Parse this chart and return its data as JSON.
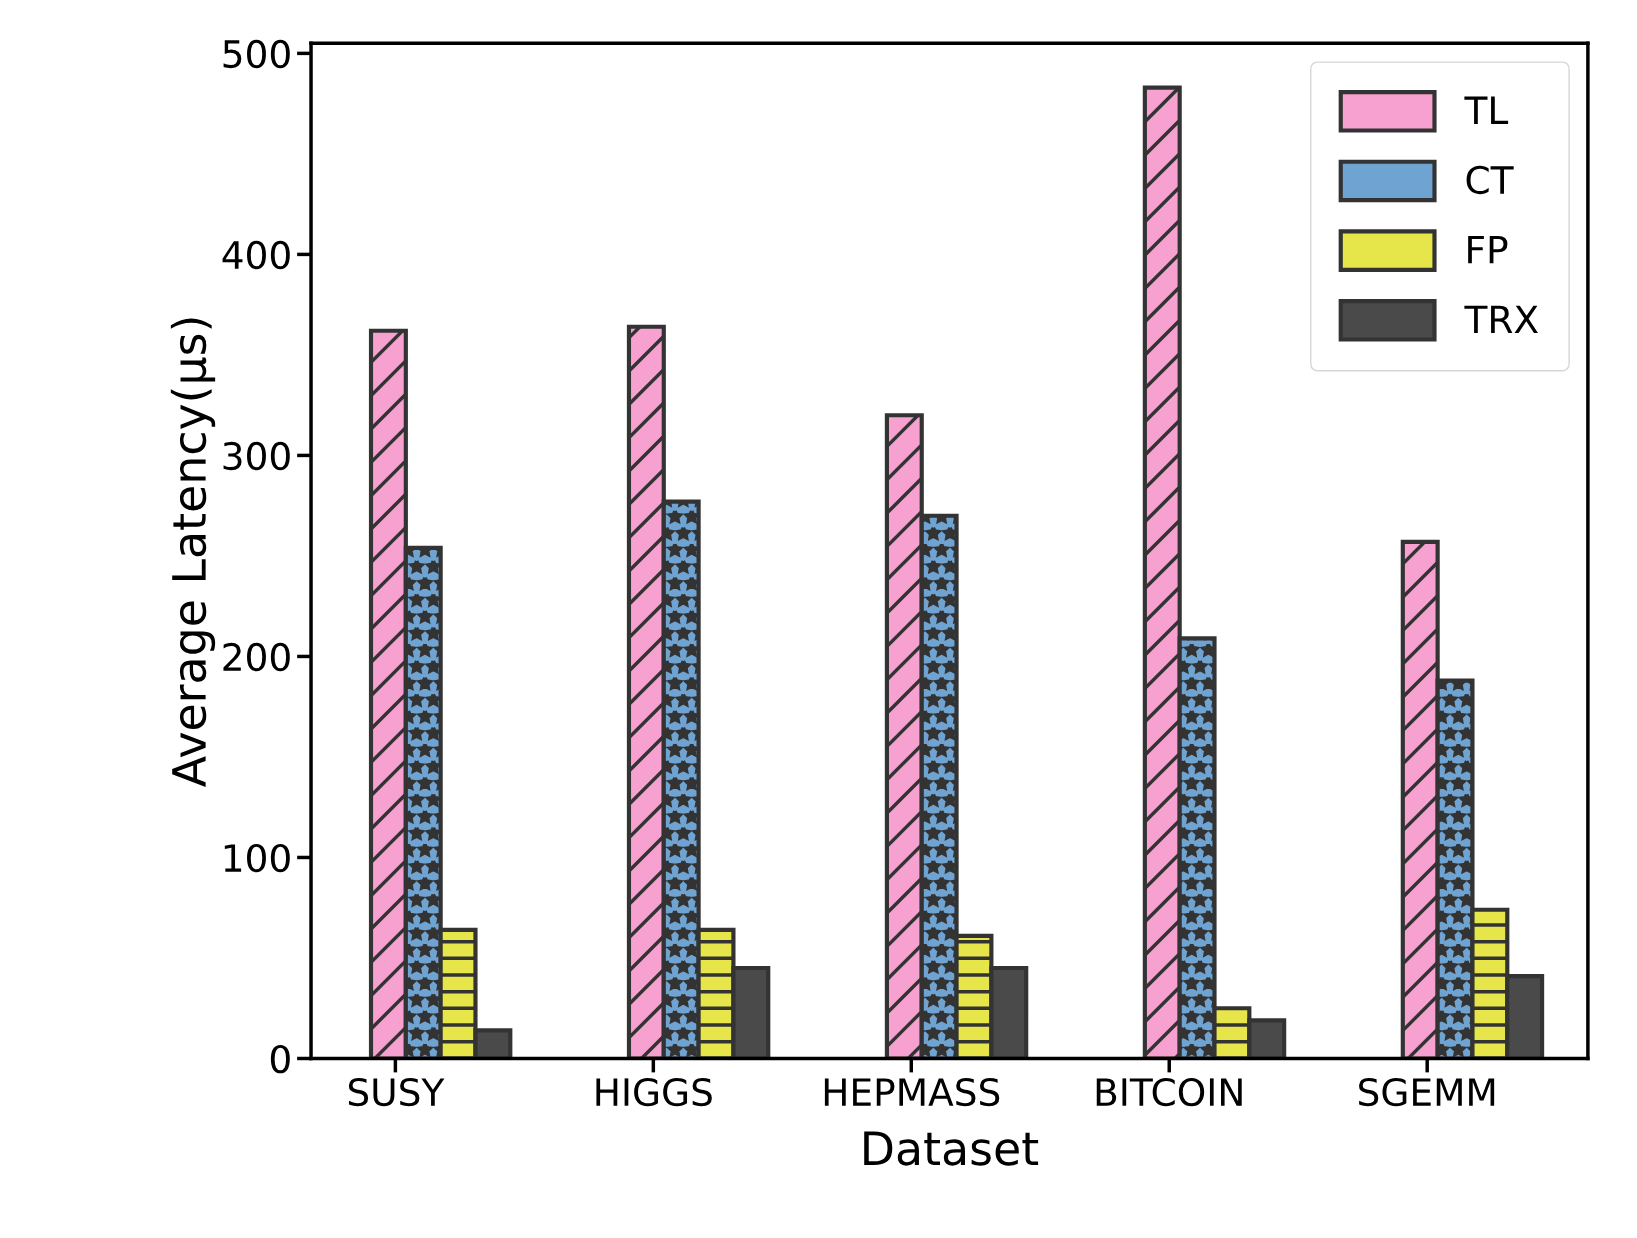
{
  "chart_data": {
    "type": "bar",
    "xlabel": "Dataset",
    "ylabel": "Average Latency(µs)",
    "categories": [
      "SUSY",
      "HIGGS",
      "HEPMASS",
      "BITCOIN",
      "SGEMM"
    ],
    "series": [
      {
        "name": "TL",
        "color": "#f7a1d0",
        "values": [
          362,
          364,
          320,
          483,
          257
        ]
      },
      {
        "name": "CT",
        "color": "#6fa3d2",
        "values": [
          254,
          277,
          270,
          209,
          188
        ]
      },
      {
        "name": "FP",
        "color": "#e6e64a",
        "values": [
          64,
          64,
          61,
          25,
          74
        ]
      },
      {
        "name": "TRX",
        "color": "#4a4a4a",
        "values": [
          14,
          45,
          45,
          19,
          41
        ]
      }
    ],
    "ylim": [
      0,
      505
    ],
    "yticks": [
      0,
      100,
      200,
      300,
      400,
      500
    ],
    "legend": "top right",
    "grid": false
  }
}
